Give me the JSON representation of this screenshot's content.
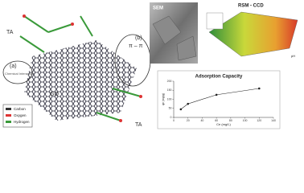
{
  "labels": {
    "ta_top": "TA",
    "a": "(a)",
    "chemical": "Chemical Interaction",
    "b": "(b)",
    "pi": "π – π",
    "go": "GO",
    "ta_bottom": "TA",
    "sem": "SEM",
    "rsm": "RSM - CCD",
    "ph": "pH"
  },
  "legend": [
    "Carbon",
    "Oxygen",
    "Hydrogen"
  ],
  "chart_data": {
    "type": "line",
    "title": "Adsorption Capacity",
    "x_label": "Ce (mg/L)",
    "y_label": "qe (mg/g)",
    "x": [
      10,
      20,
      60,
      120
    ],
    "series": [
      {
        "name": "qe",
        "color": "#222222",
        "values": [
          45,
          75,
          125,
          160
        ]
      }
    ],
    "xlim": [
      0,
      140
    ],
    "xticks": [
      0,
      20,
      40,
      60,
      80,
      100,
      120,
      140
    ],
    "ylim": [
      0,
      200
    ],
    "yticks": [
      0,
      50,
      100,
      150,
      200
    ]
  }
}
